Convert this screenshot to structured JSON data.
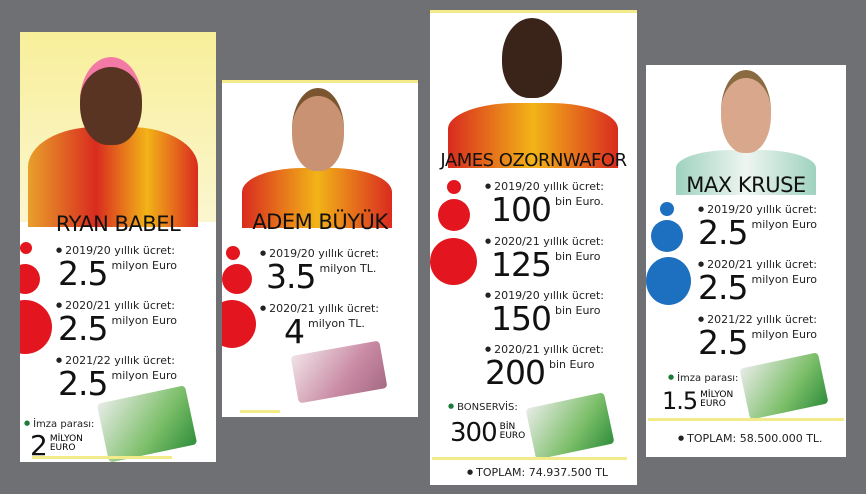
{
  "colors": {
    "galatasaray_red": "#e3151f",
    "kruse_blue": "#1d6fbf",
    "background": "#6e7073"
  },
  "cards": [
    {
      "name": "RYAN BABEL",
      "rows": [
        {
          "label": "2019/20 yıllık ücret:",
          "value": "2.5",
          "unit": "milyon Euro"
        },
        {
          "label": "2020/21 yıllık ücret:",
          "value": "2.5",
          "unit": "milyon Euro"
        },
        {
          "label": "2021/22 yıllık ücret:",
          "value": "2.5",
          "unit": "milyon Euro"
        }
      ],
      "extra": {
        "label": "İmza parası:",
        "value": "2",
        "unit_top": "MİLYON",
        "unit_bottom": "EURO"
      }
    },
    {
      "name": "ADEM BÜYÜK",
      "rows": [
        {
          "label": "2019/20 yıllık ücret:",
          "value": "3.5",
          "unit": "milyon TL."
        },
        {
          "label": "2020/21 yıllık ücret:",
          "value": "4",
          "unit": "milyon TL."
        }
      ]
    },
    {
      "name": "JAMES OZORNWAFOR",
      "rows": [
        {
          "label": "2019/20 yıllık ücret:",
          "value": "100",
          "unit": "bin Euro."
        },
        {
          "label": "2020/21 yıllık ücret:",
          "value": "125",
          "unit": "bin Euro"
        },
        {
          "label": "2019/20 yıllık ücret:",
          "value": "150",
          "unit": "bin Euro"
        },
        {
          "label": "2020/21 yıllık ücret:",
          "value": "200",
          "unit": "bin Euro"
        }
      ],
      "extra": {
        "label": "BONSERVİS:",
        "value": "300",
        "unit_top": "BİN",
        "unit_bottom": "EURO"
      },
      "total": "TOPLAM: 74.937.500 TL"
    },
    {
      "name": "MAX KRUSE",
      "rows": [
        {
          "label": "2019/20 yıllık ücret:",
          "value": "2.5",
          "unit": "milyon Euro"
        },
        {
          "label": "2020/21 yıllık ücret:",
          "value": "2.5",
          "unit": "milyon Euro"
        },
        {
          "label": "2021/22 yıllık ücret:",
          "value": "2.5",
          "unit": "milyon Euro"
        }
      ],
      "extra": {
        "label": "İmza parası:",
        "value": "1.5",
        "unit_top": "MİLYON",
        "unit_bottom": "EURO"
      },
      "total": "TOPLAM: 58.500.000 TL."
    }
  ]
}
